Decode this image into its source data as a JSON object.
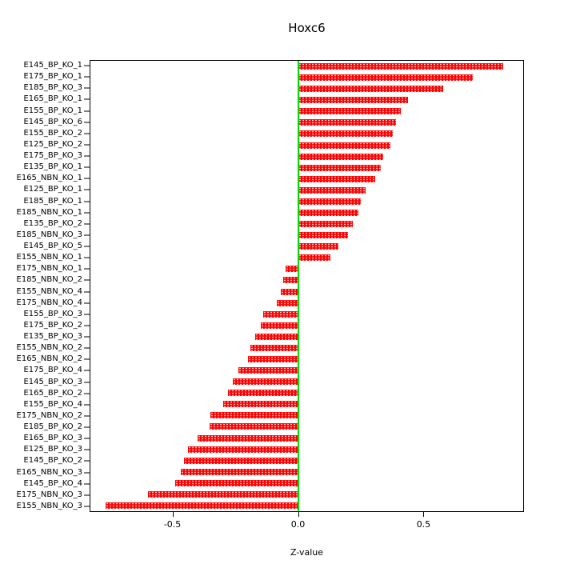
{
  "chart_data": {
    "type": "bar",
    "orientation": "horizontal",
    "title": "Hoxc6",
    "xlabel": "Z-value",
    "xlim": [
      -0.83,
      0.9
    ],
    "xticks": [
      -0.5,
      0.0,
      0.5
    ],
    "xtick_labels": [
      "-0.5",
      "0.0",
      "0.5"
    ],
    "bar_color": "#ff0000",
    "zero_line_color": "#00dd00",
    "grid": false,
    "legend": false,
    "categories": [
      "E145_BP_KO_1",
      "E175_BP_KO_1",
      "E185_BP_KO_3",
      "E165_BP_KO_1",
      "E155_BP_KO_1",
      "E145_BP_KO_6",
      "E155_BP_KO_2",
      "E125_BP_KO_2",
      "E175_BP_KO_3",
      "E135_BP_KO_1",
      "E165_NBN_KO_1",
      "E125_BP_KO_1",
      "E185_BP_KO_1",
      "E185_NBN_KO_1",
      "E135_BP_KO_2",
      "E185_NBN_KO_3",
      "E145_BP_KO_5",
      "E155_NBN_KO_1",
      "E175_NBN_KO_1",
      "E185_NBN_KO_2",
      "E155_NBN_KO_4",
      "E175_NBN_KO_4",
      "E155_BP_KO_3",
      "E175_BP_KO_2",
      "E135_BP_KO_3",
      "E155_NBN_KO_2",
      "E165_NBN_KO_2",
      "E175_BP_KO_4",
      "E145_BP_KO_3",
      "E165_BP_KO_2",
      "E155_BP_KO_4",
      "E175_NBN_KO_2",
      "E185_BP_KO_2",
      "E165_BP_KO_3",
      "E125_BP_KO_3",
      "E145_BP_KO_2",
      "E165_NBN_KO_3",
      "E145_BP_KO_4",
      "E175_NBN_KO_3",
      "E155_NBN_KO_3"
    ],
    "values": [
      0.82,
      0.7,
      0.58,
      0.44,
      0.41,
      0.39,
      0.38,
      0.37,
      0.34,
      0.33,
      0.31,
      0.27,
      0.25,
      0.24,
      0.22,
      0.2,
      0.16,
      0.13,
      -0.05,
      -0.06,
      -0.07,
      -0.085,
      -0.14,
      -0.15,
      -0.17,
      -0.19,
      -0.2,
      -0.24,
      -0.26,
      -0.28,
      -0.3,
      -0.35,
      -0.355,
      -0.4,
      -0.44,
      -0.455,
      -0.47,
      -0.49,
      -0.6,
      -0.77
    ]
  }
}
